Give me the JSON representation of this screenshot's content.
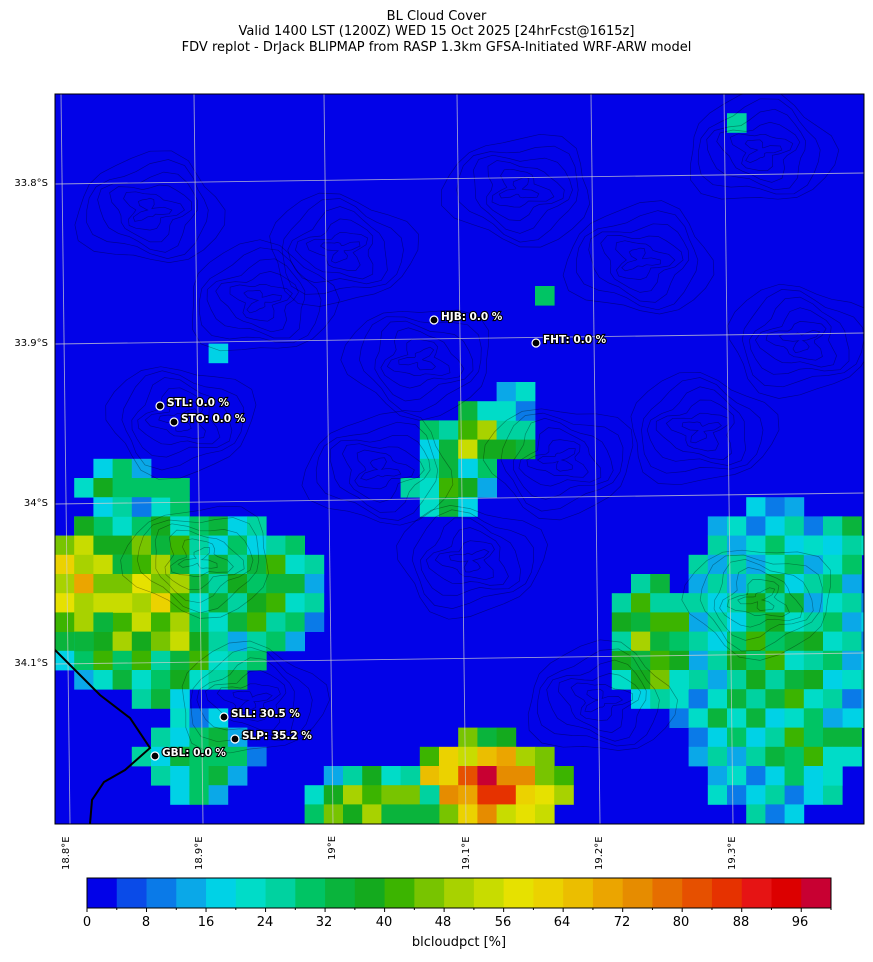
{
  "title": {
    "line1": "BL Cloud Cover",
    "line2": "Valid 1400 LST (1200Z) WED 15 Oct 2025 [24hrFcst@1615z]",
    "line3": "FDV replot - DrJack BLIPMAP from RASP 1.3km GFSA-Initiated WRF-ARW model"
  },
  "colorbar": {
    "label": "blcloudpct [%]",
    "ticks": [
      "0",
      "8",
      "16",
      "24",
      "32",
      "40",
      "48",
      "56",
      "64",
      "72",
      "80",
      "88",
      "96"
    ],
    "colors": [
      "#0202e8",
      "#0a4be8",
      "#0a7ae8",
      "#0aa8e8",
      "#00d2e6",
      "#00dcc8",
      "#00d2a0",
      "#00c464",
      "#0ab43c",
      "#14aa1e",
      "#3cb400",
      "#78c400",
      "#a8d200",
      "#c8dc00",
      "#e6e100",
      "#ebd200",
      "#ebbe00",
      "#eba500",
      "#e68c00",
      "#e66e00",
      "#e65000",
      "#e63200",
      "#e61414",
      "#dc0000",
      "#c80032"
    ]
  },
  "chart_data": {
    "type": "heatmap",
    "title": "BL Cloud Cover",
    "variable": "blcloudpct [%]",
    "value_range": [
      0,
      100
    ],
    "x_axis": {
      "ticks": [
        "18.8°E",
        "18.9°E",
        "19°E",
        "19.1°E",
        "19.2°E",
        "19.3°E"
      ],
      "range_deg": [
        18.8,
        19.4
      ]
    },
    "y_axis": {
      "ticks": [
        "33.8°S",
        "33.9°S",
        "34°S",
        "34.1°S"
      ],
      "range_deg": [
        -33.74,
        -34.2
      ]
    },
    "grid": true,
    "stations": [
      {
        "label": "HJB: 0.0 %",
        "value": 0.0
      },
      {
        "label": "FHT: 0.0 %",
        "value": 0.0
      },
      {
        "label": "STL: 0.0 %",
        "value": 0.0
      },
      {
        "label": "STO: 0.0 %",
        "value": 0.0
      },
      {
        "label": "SLL: 30.5 %",
        "value": 30.5
      },
      {
        "label": "SLP: 35.2 %",
        "value": 35.2
      },
      {
        "label": "GBL: 0.0 %",
        "value": 0.0
      }
    ]
  }
}
